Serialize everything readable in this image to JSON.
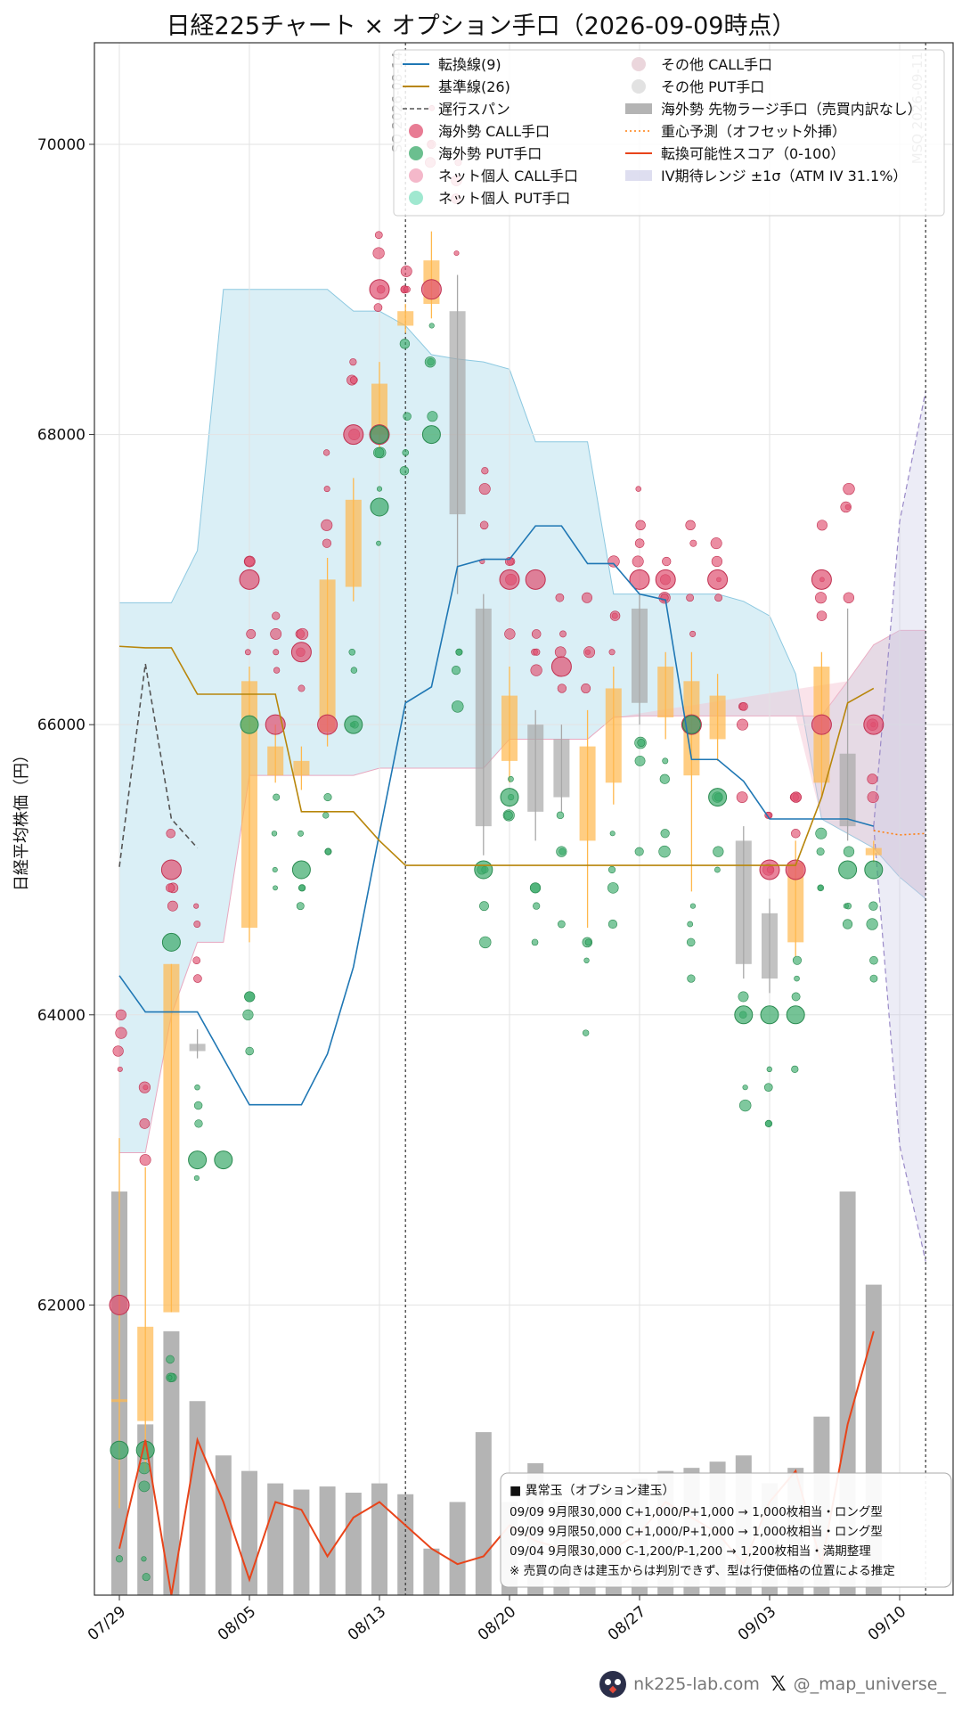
{
  "chart_data": {
    "type": "candlestick-bubble-composite",
    "title": "日経225チャート × オプション手口（2026-09-09時点）",
    "ylabel": "日経平均株価（円）",
    "ylim": [
      60000,
      70700
    ],
    "y_ticks": [
      62000,
      64000,
      66000,
      68000,
      70000
    ],
    "x_tick_labels": [
      {
        "idx": 0,
        "label": "07/29"
      },
      {
        "idx": 5,
        "label": "08/05"
      },
      {
        "idx": 10,
        "label": "08/13"
      },
      {
        "idx": 15,
        "label": "08/20"
      },
      {
        "idx": 20,
        "label": "08/27"
      },
      {
        "idx": 25,
        "label": "09/03"
      },
      {
        "idx": 30,
        "label": "09/10"
      }
    ],
    "event_lines": [
      {
        "idx": 11,
        "label": "SQ 2026-08-14"
      },
      {
        "idx": 31,
        "label": "MSQ 2026-09-11"
      }
    ],
    "candles": [
      {
        "idx": 0,
        "open": 61350,
        "close": 61350,
        "high": 63150,
        "low": 60600
      },
      {
        "idx": 1,
        "open": 61200,
        "close": 61850,
        "high": 62950,
        "low": 60850
      },
      {
        "idx": 2,
        "open": 61950,
        "close": 64350,
        "high": 64350,
        "low": 61950
      },
      {
        "idx": 3,
        "open": 63800,
        "close": 63750,
        "high": 63900,
        "low": 63700
      },
      {
        "idx": 5,
        "open": 64600,
        "close": 66300,
        "high": 66400,
        "low": 64500
      },
      {
        "idx": 6,
        "open": 65650,
        "close": 65850,
        "high": 66000,
        "low": 65600
      },
      {
        "idx": 7,
        "open": 65650,
        "close": 65750,
        "high": 65850,
        "low": 65550
      },
      {
        "idx": 8,
        "open": 65950,
        "close": 67000,
        "high": 67150,
        "low": 65850
      },
      {
        "idx": 9,
        "open": 66950,
        "close": 67550,
        "high": 67700,
        "low": 66850
      },
      {
        "idx": 10,
        "open": 68000,
        "close": 68350,
        "high": 68500,
        "low": 67900
      },
      {
        "idx": 11,
        "open": 68750,
        "close": 68850,
        "high": 68900,
        "low": 68700
      },
      {
        "idx": 12,
        "open": 68900,
        "close": 69200,
        "high": 69400,
        "low": 68800
      },
      {
        "idx": 13,
        "open": 68850,
        "close": 67450,
        "high": 69100,
        "low": 66900
      },
      {
        "idx": 14,
        "open": 66800,
        "close": 65300,
        "high": 66900,
        "low": 65100
      },
      {
        "idx": 15,
        "open": 65750,
        "close": 66200,
        "high": 66400,
        "low": 65600
      },
      {
        "idx": 16,
        "open": 66000,
        "close": 65400,
        "high": 66100,
        "low": 65200
      },
      {
        "idx": 17,
        "open": 65900,
        "close": 65500,
        "high": 66000,
        "low": 65400
      },
      {
        "idx": 18,
        "open": 65200,
        "close": 65850,
        "high": 66100,
        "low": 64600
      },
      {
        "idx": 19,
        "open": 65600,
        "close": 66250,
        "high": 66400,
        "low": 65450
      },
      {
        "idx": 20,
        "open": 66800,
        "close": 66150,
        "high": 66900,
        "low": 66000
      },
      {
        "idx": 21,
        "open": 66050,
        "close": 66400,
        "high": 66500,
        "low": 65900
      },
      {
        "idx": 22,
        "open": 65650,
        "close": 66300,
        "high": 66500,
        "low": 64850
      },
      {
        "idx": 23,
        "open": 65900,
        "close": 66200,
        "high": 66350,
        "low": 65750
      },
      {
        "idx": 24,
        "open": 65200,
        "close": 64350,
        "high": 65300,
        "low": 64250
      },
      {
        "idx": 25,
        "open": 64700,
        "close": 64250,
        "high": 64800,
        "low": 64150
      },
      {
        "idx": 26,
        "open": 64500,
        "close": 65050,
        "high": 65200,
        "low": 64400
      },
      {
        "idx": 27,
        "open": 65600,
        "close": 66400,
        "high": 66500,
        "low": 65500
      },
      {
        "idx": 28,
        "open": 65800,
        "close": 65300,
        "high": 66800,
        "low": 65200
      },
      {
        "idx": 29,
        "open": 65100,
        "close": 65150,
        "high": 65200,
        "low": 65050
      }
    ],
    "series": [
      {
        "name": "転換線(9)",
        "color": "#1f77b4",
        "points": [
          [
            0,
            64270
          ],
          [
            1,
            64020
          ],
          [
            2,
            64020
          ],
          [
            3,
            64020
          ],
          [
            5,
            63380
          ],
          [
            7,
            63380
          ],
          [
            8,
            63730
          ],
          [
            9,
            64330
          ],
          [
            10,
            65250
          ],
          [
            11,
            66150
          ],
          [
            12,
            66260
          ],
          [
            13,
            67090
          ],
          [
            14,
            67140
          ],
          [
            15,
            67140
          ],
          [
            16,
            67370
          ],
          [
            17,
            67370
          ],
          [
            18,
            67110
          ],
          [
            19,
            67110
          ],
          [
            20,
            66900
          ],
          [
            21,
            66860
          ],
          [
            22,
            65760
          ],
          [
            23,
            65760
          ],
          [
            24,
            65610
          ],
          [
            25,
            65350
          ],
          [
            27,
            65350
          ],
          [
            28,
            65350
          ],
          [
            29,
            65300
          ]
        ]
      },
      {
        "name": "基準線(26)",
        "color": "#b8860b",
        "points": [
          [
            0,
            66540
          ],
          [
            1,
            66530
          ],
          [
            2,
            66530
          ],
          [
            3,
            66210
          ],
          [
            5,
            66210
          ],
          [
            6,
            66210
          ],
          [
            7,
            65400
          ],
          [
            8,
            65400
          ],
          [
            9,
            65400
          ],
          [
            10,
            65200
          ],
          [
            11,
            65030
          ],
          [
            24,
            65030
          ],
          [
            25,
            65030
          ],
          [
            26,
            65030
          ],
          [
            27,
            65500
          ],
          [
            28,
            66150
          ],
          [
            29,
            66250
          ]
        ]
      },
      {
        "name": "遅行スパン",
        "color": "#555555",
        "dashed": true,
        "points": [
          [
            0,
            65020
          ],
          [
            1,
            66420
          ],
          [
            2,
            65350
          ],
          [
            3,
            65150
          ]
        ]
      },
      {
        "name": "重心予測（オフセット外挿）",
        "color": "#ff7f0e",
        "dotted": true,
        "points": [
          [
            29,
            65270
          ],
          [
            30,
            65240
          ],
          [
            31,
            65250
          ]
        ]
      }
    ],
    "score": {
      "name": "転換可能性スコア（0-100）",
      "color": "#e8441a",
      "range": [
        0,
        100
      ],
      "values": [
        [
          0,
          3
        ],
        [
          1,
          10
        ],
        [
          2,
          0
        ],
        [
          3,
          10
        ],
        [
          4,
          6
        ],
        [
          5,
          1
        ],
        [
          6,
          6
        ],
        [
          7,
          5.5
        ],
        [
          8,
          2.5
        ],
        [
          9,
          5
        ],
        [
          10,
          6
        ],
        [
          12,
          3
        ],
        [
          13,
          2
        ],
        [
          14,
          2.5
        ],
        [
          15,
          4.5
        ],
        [
          16,
          3.5
        ],
        [
          17,
          3
        ],
        [
          18,
          2.5
        ],
        [
          19,
          3
        ],
        [
          20,
          4
        ],
        [
          21,
          6
        ],
        [
          22,
          5
        ],
        [
          23,
          4
        ],
        [
          24,
          2
        ],
        [
          25,
          6
        ],
        [
          26,
          8
        ],
        [
          27,
          2
        ],
        [
          28,
          11
        ],
        [
          29,
          17
        ]
      ]
    },
    "volume": {
      "name": "海外勢 先物ラージ手口（売買内訳なし）",
      "color": "#b4b4b4",
      "range": [
        0,
        100
      ],
      "values": [
        [
          0,
          26
        ],
        [
          1,
          11
        ],
        [
          2,
          17
        ],
        [
          3,
          12.5
        ],
        [
          4,
          9
        ],
        [
          5,
          8
        ],
        [
          6,
          7.2
        ],
        [
          7,
          6.8
        ],
        [
          8,
          7
        ],
        [
          9,
          6.6
        ],
        [
          10,
          7.2
        ],
        [
          11,
          6.5
        ],
        [
          12,
          3
        ],
        [
          13,
          6
        ],
        [
          14,
          10.5
        ],
        [
          15,
          6
        ],
        [
          16,
          8.5
        ],
        [
          17,
          6
        ],
        [
          18,
          7.2
        ],
        [
          19,
          6.8
        ],
        [
          20,
          7.5
        ],
        [
          21,
          8
        ],
        [
          22,
          8.2
        ],
        [
          23,
          8.6
        ],
        [
          24,
          9
        ],
        [
          25,
          7.2
        ],
        [
          26,
          8.2
        ],
        [
          27,
          11.5
        ],
        [
          28,
          26
        ],
        [
          29,
          20
        ]
      ]
    },
    "ichimoku_cloud": {
      "span_a": [
        [
          0,
          66840
        ],
        [
          1,
          66840
        ],
        [
          2,
          66840
        ],
        [
          3,
          67200
        ],
        [
          4,
          69000
        ],
        [
          5,
          69000
        ],
        [
          6,
          69000
        ],
        [
          7,
          69000
        ],
        [
          8,
          69000
        ],
        [
          9,
          68850
        ],
        [
          10,
          68850
        ],
        [
          11,
          68750
        ],
        [
          12,
          68550
        ],
        [
          13,
          68520
        ],
        [
          14,
          68500
        ],
        [
          15,
          68450
        ],
        [
          16,
          67950
        ],
        [
          17,
          67950
        ],
        [
          18,
          67950
        ],
        [
          19,
          66900
        ],
        [
          20,
          66900
        ],
        [
          21,
          66900
        ],
        [
          22,
          66900
        ],
        [
          23,
          66900
        ],
        [
          24,
          66850
        ],
        [
          25,
          66750
        ],
        [
          26,
          66350
        ],
        [
          27,
          65350
        ],
        [
          28,
          65250
        ],
        [
          29,
          65150
        ],
        [
          30,
          64950
        ],
        [
          31,
          64800
        ]
      ],
      "span_b": [
        [
          0,
          63050
        ],
        [
          1,
          63050
        ],
        [
          2,
          64000
        ],
        [
          3,
          64500
        ],
        [
          4,
          64500
        ],
        [
          5,
          65650
        ],
        [
          6,
          65650
        ],
        [
          7,
          65650
        ],
        [
          8,
          65650
        ],
        [
          9,
          65650
        ],
        [
          10,
          65700
        ],
        [
          11,
          65700
        ],
        [
          12,
          65700
        ],
        [
          13,
          65700
        ],
        [
          14,
          65700
        ],
        [
          15,
          65900
        ],
        [
          16,
          65900
        ],
        [
          17,
          65900
        ],
        [
          18,
          65900
        ],
        [
          19,
          66050
        ],
        [
          20,
          66060
        ],
        [
          21,
          66060
        ],
        [
          22,
          66060
        ],
        [
          23,
          66060
        ],
        [
          24,
          66060
        ],
        [
          25,
          66060
        ],
        [
          26,
          66060
        ],
        [
          27,
          66060
        ],
        [
          28,
          66300
        ],
        [
          29,
          66550
        ],
        [
          30,
          66650
        ],
        [
          31,
          66650
        ]
      ]
    },
    "iv_range": {
      "name": "IV期待レンジ ±1σ（ATM IV 31.1%）",
      "upper": [
        [
          29,
          65300
        ],
        [
          30,
          67400
        ],
        [
          31,
          68300
        ]
      ],
      "lower": [
        [
          29,
          65300
        ],
        [
          30,
          63100
        ],
        [
          31,
          62300
        ]
      ]
    },
    "bubble_legend": [
      {
        "name": "海外勢 CALL手口",
        "color": "#e05070"
      },
      {
        "name": "海外勢 PUT手口",
        "color": "#3aaa6a"
      },
      {
        "name": "ネット個人 CALL手口",
        "color": "#f0a0b8"
      },
      {
        "name": "ネット個人 PUT手口",
        "color": "#80e0c0"
      },
      {
        "name": "その他 CALL手口",
        "color": "#e4c8d0"
      },
      {
        "name": "その他 PUT手口",
        "color": "#d8d8d8"
      }
    ],
    "big_call_bubbles": [
      [
        0,
        62000
      ],
      [
        2,
        65000
      ],
      [
        5,
        67000
      ],
      [
        6,
        66000
      ],
      [
        7,
        66500
      ],
      [
        8,
        66000
      ],
      [
        9,
        68000
      ],
      [
        10,
        68000
      ],
      [
        10,
        69000
      ],
      [
        12,
        69000
      ],
      [
        15,
        67000
      ],
      [
        16,
        67000
      ],
      [
        17,
        66400
      ],
      [
        20,
        67000
      ],
      [
        21,
        67000
      ],
      [
        22,
        66000
      ],
      [
        23,
        67000
      ],
      [
        25,
        65000
      ],
      [
        26,
        65000
      ],
      [
        27,
        67000
      ],
      [
        27,
        66000
      ],
      [
        29,
        66000
      ]
    ],
    "big_put_bubbles": [
      [
        0,
        61000
      ],
      [
        1,
        61000
      ],
      [
        2,
        64500
      ],
      [
        3,
        63000
      ],
      [
        4,
        63000
      ],
      [
        5,
        66000
      ],
      [
        7,
        65000
      ],
      [
        9,
        66000
      ],
      [
        10,
        67500
      ],
      [
        10,
        68000
      ],
      [
        12,
        68000
      ],
      [
        14,
        65000
      ],
      [
        15,
        65500
      ],
      [
        22,
        66000
      ],
      [
        23,
        65500
      ],
      [
        24,
        64000
      ],
      [
        25,
        64000
      ],
      [
        26,
        64000
      ],
      [
        28,
        65000
      ],
      [
        29,
        65000
      ]
    ],
    "annotation_box": {
      "title": "■ 異常玉（オプション建玉）",
      "lines": [
        "09/09 9月限30,000 C+1,000/P+1,000 → 1,000枚相当・ロング型",
        "09/09 9月限50,000 C+1,000/P+1,000 → 1,000枚相当・ロング型",
        "09/04 9月限30,000 C-1,200/P-1,200 → 1,200枚相当・満期整理",
        "※ 売買の向きは建玉からは判別できず、型は行使価格の位置による推定"
      ]
    },
    "legend_placement": "top-right",
    "grid": true
  },
  "footer": {
    "site": "nk225-lab.com",
    "handle": "@_map_universe_"
  }
}
